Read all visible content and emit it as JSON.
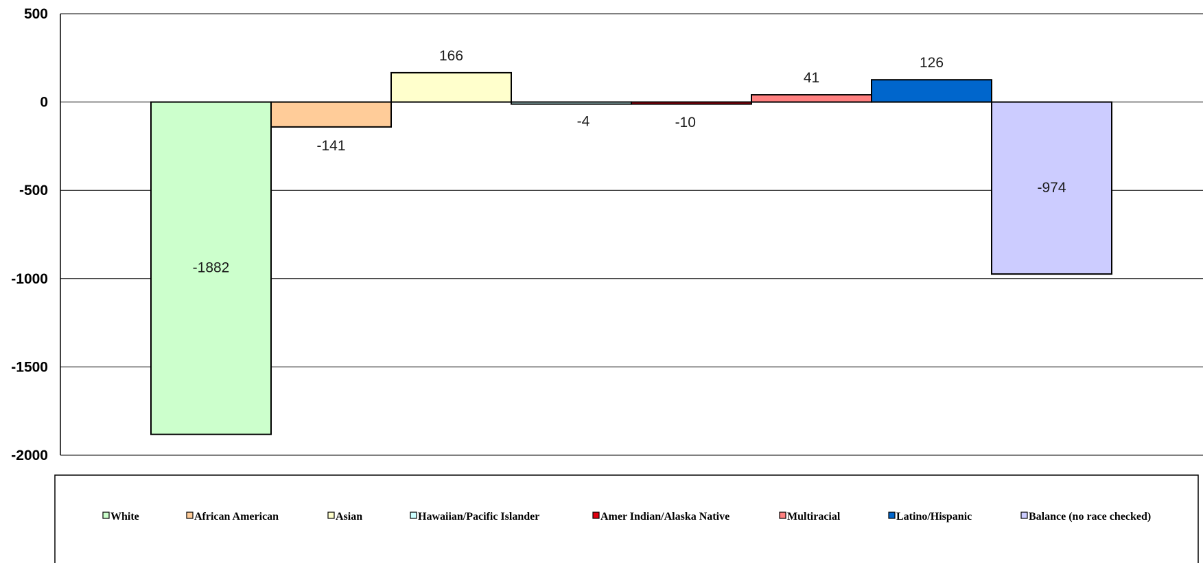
{
  "chart_data": {
    "type": "bar",
    "categories": [
      "White",
      "African American",
      "Asian",
      "Hawaiian/Pacific Islander",
      "Amer Indian/Alaska Native",
      "Multiracial",
      "Latino/Hispanic",
      "Balance (no race checked)"
    ],
    "values": [
      -1882,
      -141,
      166,
      -4,
      -10,
      41,
      126,
      -974
    ],
    "data_labels": [
      "-1882",
      "-141",
      "166",
      "-4",
      "-10",
      "41",
      "126",
      "-974"
    ],
    "colors": [
      "#CCFFCC",
      "#FFCC99",
      "#FFFFCC",
      "#CCFFFF",
      "#E0000F",
      "#FF8080",
      "#0066CC",
      "#CCCCFF"
    ],
    "ylim": [
      -2000,
      500
    ],
    "yticks": [
      500,
      0,
      -500,
      -1000,
      -1500,
      -2000
    ],
    "ytick_labels": [
      "500",
      "0",
      "-500",
      "-1000",
      "-1500",
      "-2000"
    ],
    "grid": true,
    "legend_position": "bottom",
    "title": "",
    "xlabel": "",
    "ylabel": ""
  }
}
